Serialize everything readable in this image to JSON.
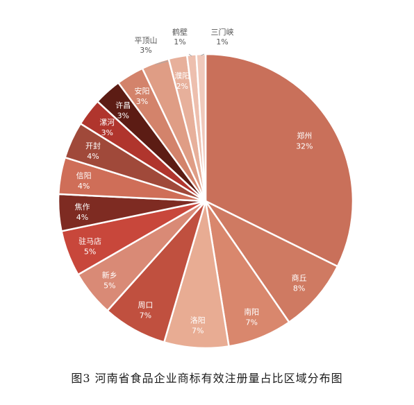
{
  "chart_data": {
    "type": "pie",
    "title": "",
    "caption": "图3 河南省食品企业商标有效注册量占比区域分布图",
    "value_unit": "%",
    "start": "12 o'clock",
    "direction": "clockwise",
    "labels_inside": true,
    "legend": "none",
    "slices": [
      {
        "name": "郑州",
        "value": 32,
        "color": "#c9705a"
      },
      {
        "name": "商丘",
        "value": 8,
        "color": "#cf7a62"
      },
      {
        "name": "南阳",
        "value": 7,
        "color": "#d9876d"
      },
      {
        "name": "洛阳",
        "value": 7,
        "color": "#e8ac93"
      },
      {
        "name": "周口",
        "value": 7,
        "color": "#c0503f"
      },
      {
        "name": "新乡",
        "value": 5,
        "color": "#d98a76"
      },
      {
        "name": "驻马店",
        "value": 5,
        "color": "#c8473b"
      },
      {
        "name": "焦作",
        "value": 4,
        "color": "#7e2b22"
      },
      {
        "name": "信阳",
        "value": 4,
        "color": "#cf6e58"
      },
      {
        "name": "开封",
        "value": 4,
        "color": "#a0493a"
      },
      {
        "name": "漯河",
        "value": 3,
        "color": "#b0352d"
      },
      {
        "name": "许昌",
        "value": 3,
        "color": "#5c1c14"
      },
      {
        "name": "安阳",
        "value": 3,
        "color": "#d3836b"
      },
      {
        "name": "平顶山",
        "value": 3,
        "color": "#df9d85"
      },
      {
        "name": "濮阳",
        "value": 2,
        "color": "#e7b09b"
      },
      {
        "name": "鹤壁",
        "value": 1,
        "color": "#edbfae"
      },
      {
        "name": "三门峡",
        "value": 1,
        "color": "#f0c9bb"
      }
    ]
  }
}
